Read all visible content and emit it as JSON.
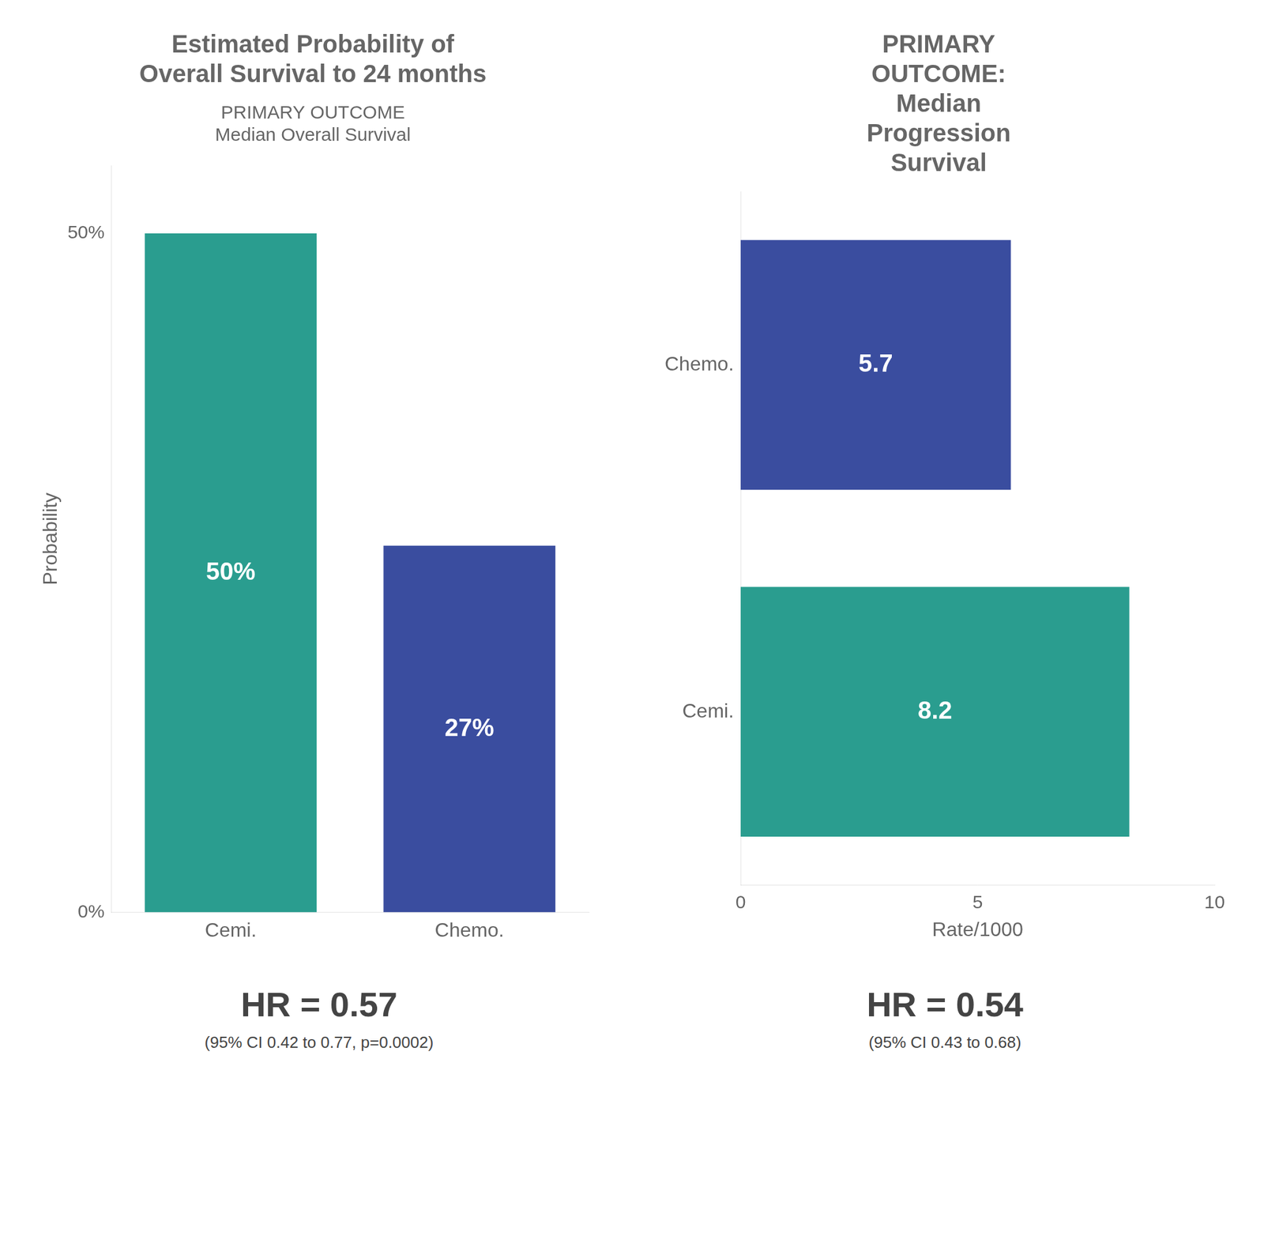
{
  "chart_data": [
    {
      "type": "bar",
      "title": "Estimated Probability of\nOverall Survival to 24 months",
      "subtitle": "PRIMARY OUTCOME\nMedian Overall Survival",
      "annotations": [
        "HR = 0.57",
        "(95% CI 0.42 to 0.77, p=0.0002)"
      ],
      "categories": [
        "Cemi.",
        "Chemo."
      ],
      "values": [
        50,
        27
      ],
      "value_labels": [
        "50%",
        "27%"
      ],
      "colors": [
        "#2a9d8f",
        "#3a4d9f"
      ],
      "ylabel": "Probability",
      "ylim": [
        0,
        55
      ],
      "yticks": [
        {
          "value": 0,
          "label": "0%"
        },
        {
          "value": 50,
          "label": "50%"
        }
      ],
      "grid": false,
      "data_labels": true
    },
    {
      "type": "bar",
      "orientation": "horizontal",
      "title": "PRIMARY\nOUTCOME:\nMedian\nProgression\nSurvival",
      "annotations": [
        "HR = 0.54",
        "(95% CI 0.43 to 0.68)"
      ],
      "categories": [
        "Cemi.",
        "Chemo."
      ],
      "values": [
        8.2,
        5.7
      ],
      "colors": [
        "#2a9d8f",
        "#3a4d9f"
      ],
      "xlabel": "Rate/1000",
      "xlim": [
        0,
        10
      ],
      "xticks": [
        0,
        5,
        10
      ],
      "grid": false,
      "data_labels": true
    }
  ]
}
